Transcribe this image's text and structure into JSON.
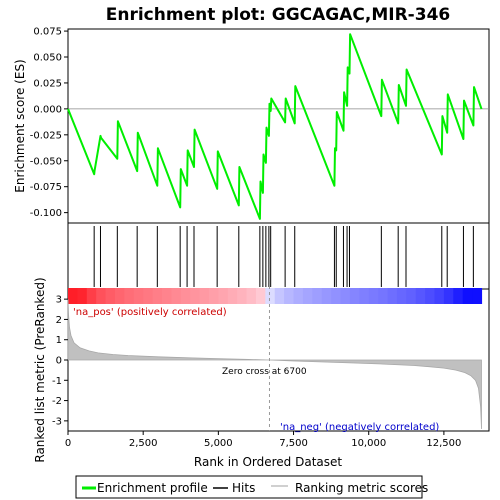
{
  "chart_data": {
    "type": "line",
    "title": "Enrichment plot: GGCAGAC,MIR-346",
    "top_panel": {
      "ylabel": "Enrichment score (ES)",
      "ylim": [
        -0.11,
        0.077
      ],
      "yticks": [
        -0.1,
        -0.075,
        -0.05,
        -0.025,
        0.0,
        0.025,
        0.05,
        0.075
      ],
      "ytick_labels": [
        "-0.100",
        "-0.075",
        "-0.050",
        "-0.025",
        "0.000",
        "0.025",
        "0.050",
        "0.075"
      ],
      "series": [
        {
          "name": "Enrichment profile",
          "color": "#00ee00",
          "x": [
            0,
            870,
            880,
            1080,
            1100,
            1640,
            1660,
            2300,
            2320,
            2970,
            2990,
            3730,
            3750,
            3960,
            3980,
            4190,
            4210,
            4960,
            4980,
            5680,
            5700,
            6380,
            6400,
            6480,
            6500,
            6580,
            6600,
            6680,
            6700,
            6740,
            6760,
            7220,
            7240,
            7540,
            7560,
            8860,
            8880,
            8920,
            8940,
            9160,
            9180,
            9280,
            9300,
            9360,
            9380,
            10420,
            10440,
            10980,
            11000,
            11240,
            11260,
            12430,
            12450,
            12610,
            12630,
            13150,
            13170,
            13480,
            13500,
            13750
          ],
          "y": [
            0.0,
            -0.063,
            -0.06,
            -0.026,
            -0.028,
            -0.048,
            -0.012,
            -0.06,
            -0.023,
            -0.074,
            -0.038,
            -0.095,
            -0.058,
            -0.074,
            -0.04,
            -0.056,
            -0.02,
            -0.077,
            -0.041,
            -0.093,
            -0.056,
            -0.106,
            -0.07,
            -0.081,
            -0.044,
            -0.052,
            -0.018,
            -0.026,
            0.005,
            -0.002,
            0.01,
            -0.013,
            0.01,
            -0.014,
            0.022,
            -0.074,
            -0.038,
            -0.04,
            -0.003,
            -0.021,
            0.016,
            0.003,
            0.04,
            0.034,
            0.072,
            -0.007,
            0.028,
            -0.014,
            0.023,
            0.003,
            0.038,
            -0.044,
            -0.007,
            -0.023,
            0.014,
            -0.029,
            0.008,
            -0.016,
            0.021,
            0.0
          ]
        }
      ]
    },
    "hits": [
      870,
      1080,
      1640,
      2300,
      2970,
      3730,
      3960,
      4190,
      4960,
      5680,
      6380,
      6480,
      6580,
      6680,
      6740,
      7220,
      7540,
      8860,
      8920,
      9160,
      9280,
      9360,
      10420,
      10980,
      11240,
      12430,
      12610,
      13150,
      13480
    ],
    "hits_label": "Hits",
    "bottom_panel": {
      "xlabel": "Rank in Ordered Dataset",
      "ylabel": "Ranked list metric (PreRanked)",
      "ylim": [
        -3.5,
        3.5
      ],
      "yticks": [
        -3,
        -2,
        -1,
        0,
        1,
        2,
        3
      ],
      "ytick_labels": [
        "-3",
        "-2",
        "-1",
        "0",
        "1",
        "2",
        "3"
      ],
      "series": [
        {
          "name": "Ranking metric scores",
          "color": "#c0c0c0",
          "x": [
            0,
            20,
            50,
            100,
            200,
            400,
            700,
            1000,
            1500,
            2000,
            3000,
            4000,
            5000,
            6000,
            6700,
            7500,
            8500,
            9500,
            10500,
            11500,
            12000,
            12500,
            12900,
            13200,
            13400,
            13550,
            13650,
            13720,
            13750
          ],
          "y": [
            3.0,
            2.2,
            1.6,
            1.2,
            0.85,
            0.6,
            0.45,
            0.35,
            0.27,
            0.22,
            0.16,
            0.11,
            0.07,
            0.03,
            0.0,
            -0.05,
            -0.1,
            -0.15,
            -0.2,
            -0.27,
            -0.33,
            -0.4,
            -0.5,
            -0.62,
            -0.78,
            -1.0,
            -1.4,
            -2.3,
            -3.4
          ]
        }
      ],
      "zero_cross": 6700,
      "zero_cross_label": "Zero cross at 6700",
      "pos_label": "'na_pos' (positively correlated)",
      "neg_label": "'na_neg' (negatively correlated)"
    },
    "xlim": [
      0,
      14000
    ],
    "xticks": [
      0,
      2500,
      5000,
      7500,
      10000,
      12500
    ],
    "xtick_labels": [
      "0",
      "2,500",
      "5,000",
      "7,500",
      "10,000",
      "12,500"
    ],
    "n_genes": 13750,
    "legend": {
      "placement": "bottom",
      "items": [
        {
          "label": "Enrichment profile",
          "color": "#00ee00"
        },
        {
          "label": "Hits",
          "color": "#000000"
        },
        {
          "label": "Ranking metric scores",
          "color": "#c0c0c0"
        }
      ]
    }
  }
}
